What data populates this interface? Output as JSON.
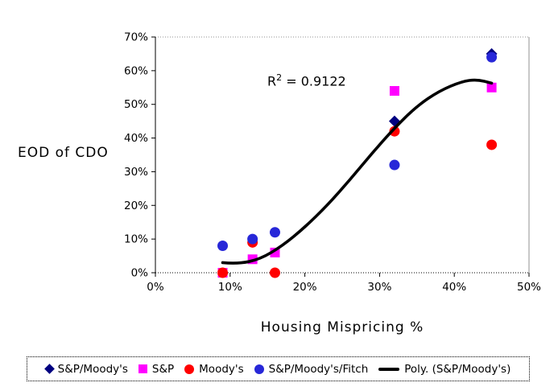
{
  "chart_data": {
    "type": "scatter",
    "title": "",
    "xlabel": "Housing Mispricing %",
    "ylabel": "EOD of CDO",
    "annotation": {
      "base": "R",
      "sup": "2",
      "rest": " = 0.9122"
    },
    "xlim": [
      0,
      50
    ],
    "ylim": [
      0,
      70
    ],
    "x_tick_values": [
      0,
      10,
      20,
      30,
      40,
      50
    ],
    "x_tick_labels": [
      "0%",
      "10%",
      "20%",
      "30%",
      "40%",
      "50%"
    ],
    "y_tick_values": [
      0,
      10,
      20,
      30,
      40,
      50,
      60,
      70
    ],
    "y_tick_labels": [
      "0%",
      "10%",
      "20%",
      "30%",
      "40%",
      "50%",
      "60%",
      "70%"
    ],
    "gridlines": "top-border-dotted-only",
    "axis_color": "#000000",
    "frame_color": "#909090",
    "legend_position": "bottom",
    "series": [
      {
        "name": "S&P/Moody's",
        "marker": "diamond",
        "color": "#000080",
        "points": [
          [
            32,
            45
          ],
          [
            45,
            65
          ]
        ]
      },
      {
        "name": "S&P",
        "marker": "square",
        "color": "#FF00FF",
        "points": [
          [
            9,
            0
          ],
          [
            13,
            4
          ],
          [
            16,
            6
          ],
          [
            32,
            54
          ],
          [
            45,
            55
          ]
        ]
      },
      {
        "name": "Moody's",
        "marker": "circle",
        "color": "#FF0000",
        "points": [
          [
            9,
            0
          ],
          [
            13,
            9
          ],
          [
            16,
            0
          ],
          [
            32,
            42
          ],
          [
            45,
            38
          ]
        ]
      },
      {
        "name": "S&P/Moody's/Fitch",
        "marker": "circle",
        "color": "#2727D8",
        "points": [
          [
            9,
            8
          ],
          [
            13,
            10
          ],
          [
            16,
            12
          ],
          [
            32,
            32
          ],
          [
            45,
            64
          ]
        ]
      }
    ],
    "trendline": {
      "name": "Poly. (S&P/Moody's)",
      "color": "#000000",
      "points": [
        [
          9,
          3
        ],
        [
          11,
          2.6
        ],
        [
          14,
          4
        ],
        [
          17,
          8
        ],
        [
          20,
          13.5
        ],
        [
          23,
          20
        ],
        [
          26,
          27.5
        ],
        [
          29,
          35.5
        ],
        [
          32,
          43
        ],
        [
          35,
          49.5
        ],
        [
          38,
          54
        ],
        [
          41,
          56.8
        ],
        [
          43,
          57.4
        ],
        [
          45,
          56.3
        ]
      ]
    }
  }
}
